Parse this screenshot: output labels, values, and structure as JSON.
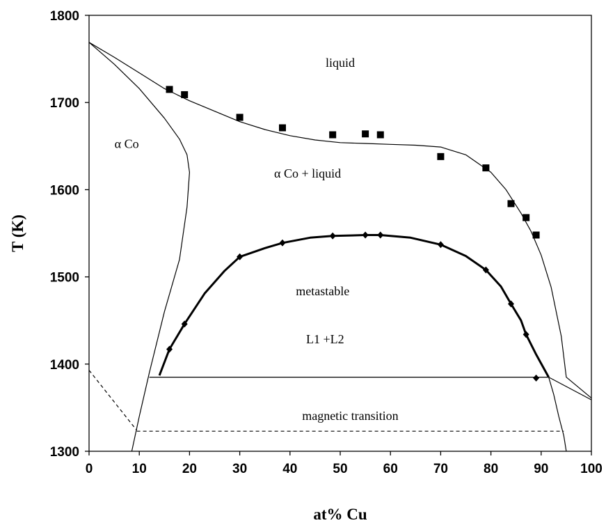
{
  "chart_data": {
    "type": "scatter",
    "title": "",
    "xlabel": "at% Cu",
    "ylabel": "T (K)",
    "xlim": [
      0,
      100
    ],
    "ylim": [
      1300,
      1800
    ],
    "xticks": [
      0,
      10,
      20,
      30,
      40,
      50,
      60,
      70,
      80,
      90,
      100
    ],
    "yticks": [
      1300,
      1400,
      1500,
      1600,
      1700,
      1800
    ],
    "grid": false,
    "legend": "none",
    "annotations": [
      {
        "text": "liquid",
        "x": 50,
        "y": 1741
      },
      {
        "text": "α Co",
        "x": 7.5,
        "y": 1648
      },
      {
        "text": "α Co + liquid",
        "x": 43.5,
        "y": 1614
      },
      {
        "text": "metastable",
        "x": 46.5,
        "y": 1479
      },
      {
        "text": "L1 +L2",
        "x": 47,
        "y": 1424
      },
      {
        "text": "magnetic transition",
        "x": 52,
        "y": 1336
      }
    ],
    "series": [
      {
        "marker": "square",
        "x": [
          16,
          19,
          30,
          38.5,
          48.5,
          55,
          58,
          70,
          79,
          84,
          87,
          89
        ],
        "y": [
          1715,
          1709,
          1683,
          1671,
          1663,
          1664,
          1663,
          1638,
          1625,
          1584,
          1568,
          1548
        ]
      },
      {
        "marker": "diamond",
        "x": [
          16,
          19,
          30,
          38.5,
          48.5,
          55,
          58,
          70,
          79,
          84,
          87,
          89
        ],
        "y": [
          1417,
          1446,
          1523,
          1539,
          1547,
          1548,
          1548,
          1537,
          1508,
          1469,
          1434,
          1384
        ]
      },
      {
        "style": "thin",
        "x": [
          0,
          5,
          10,
          15,
          20,
          25,
          30,
          35,
          40,
          45,
          50,
          55,
          60,
          65,
          70,
          75,
          80,
          83,
          86,
          88,
          90,
          92,
          94,
          95,
          100
        ],
        "y": [
          1769,
          1752,
          1734,
          1716,
          1702,
          1690,
          1678,
          1669,
          1662,
          1657,
          1654,
          1653,
          1652,
          1651,
          1649,
          1640,
          1620,
          1600,
          1573,
          1552,
          1525,
          1488,
          1432,
          1385,
          1361
        ]
      },
      {
        "style": "thin",
        "x": [
          0,
          5,
          10,
          15,
          18,
          19.5,
          20,
          19.5,
          18,
          15,
          12,
          10,
          8.5
        ],
        "y": [
          1769,
          1744,
          1716,
          1682,
          1658,
          1640,
          1620,
          1580,
          1520,
          1460,
          1390,
          1340,
          1300
        ]
      },
      {
        "style": "thin",
        "x": [
          91.5,
          92.5,
          93.5,
          94.5,
          95
        ],
        "y": [
          1385,
          1365,
          1340,
          1318,
          1300
        ]
      },
      {
        "style": "thin",
        "x": [
          91.5,
          100
        ],
        "y": [
          1385,
          1359
        ]
      },
      {
        "style": "thick",
        "x": [
          14,
          16,
          19,
          23,
          27,
          30,
          35,
          38.5,
          44,
          48.5,
          55,
          58,
          64,
          70,
          75,
          79,
          82,
          84,
          86,
          87,
          89,
          91.5
        ],
        "y": [
          1387,
          1417,
          1446,
          1481,
          1507,
          1523,
          1533,
          1539,
          1545,
          1547,
          1548,
          1548,
          1545,
          1537,
          1524,
          1508,
          1489,
          1469,
          1450,
          1434,
          1411,
          1385
        ]
      },
      {
        "style": "thin",
        "x": [
          12,
          91.5
        ],
        "y": [
          1385,
          1385
        ]
      },
      {
        "style": "dashed",
        "x": [
          0,
          9.5
        ],
        "y": [
          1393,
          1324
        ]
      },
      {
        "style": "dashed",
        "x": [
          9.5,
          94.5
        ],
        "y": [
          1323,
          1323
        ]
      }
    ]
  }
}
